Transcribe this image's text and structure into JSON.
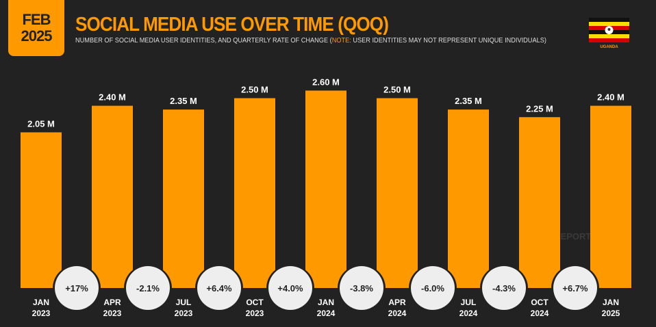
{
  "header": {
    "month": "FEB",
    "year": "2025",
    "title": "SOCIAL MEDIA USE OVER TIME (QOQ)",
    "subtitle_start": "NUMBER OF SOCIAL MEDIA USER IDENTITIES, AND QUARTERLY RATE OF CHANGE (",
    "subtitle_note": "NOTE:",
    "subtitle_end": " USER IDENTITIES MAY NOT REPRESENT UNIQUE INDIVIDUALS)",
    "country": "UGANDA",
    "watermark": "DATAREPORTAL"
  },
  "colors": {
    "bar": "#FF9900",
    "background": "#222222",
    "circle": "#EEEEEE"
  },
  "chart_data": {
    "type": "bar",
    "title": "SOCIAL MEDIA USE OVER TIME (QOQ)",
    "categories": [
      [
        "JAN",
        "2023"
      ],
      [
        "APR",
        "2023"
      ],
      [
        "JUL",
        "2023"
      ],
      [
        "OCT",
        "2023"
      ],
      [
        "JAN",
        "2024"
      ],
      [
        "APR",
        "2024"
      ],
      [
        "JUL",
        "2024"
      ],
      [
        "OCT",
        "2024"
      ],
      [
        "JAN",
        "2025"
      ]
    ],
    "values": [
      2.05,
      2.4,
      2.35,
      2.5,
      2.6,
      2.5,
      2.35,
      2.25,
      2.4
    ],
    "value_labels": [
      "2.05 M",
      "2.40 M",
      "2.35 M",
      "2.50 M",
      "2.60 M",
      "2.50 M",
      "2.35 M",
      "2.25 M",
      "2.40 M"
    ],
    "changes": [
      "+17%",
      "-2.1%",
      "+6.4%",
      "+4.0%",
      "-3.8%",
      "-6.0%",
      "-4.3%",
      "+6.7%"
    ],
    "unit": "millions",
    "ylim": [
      0,
      2.6
    ]
  }
}
